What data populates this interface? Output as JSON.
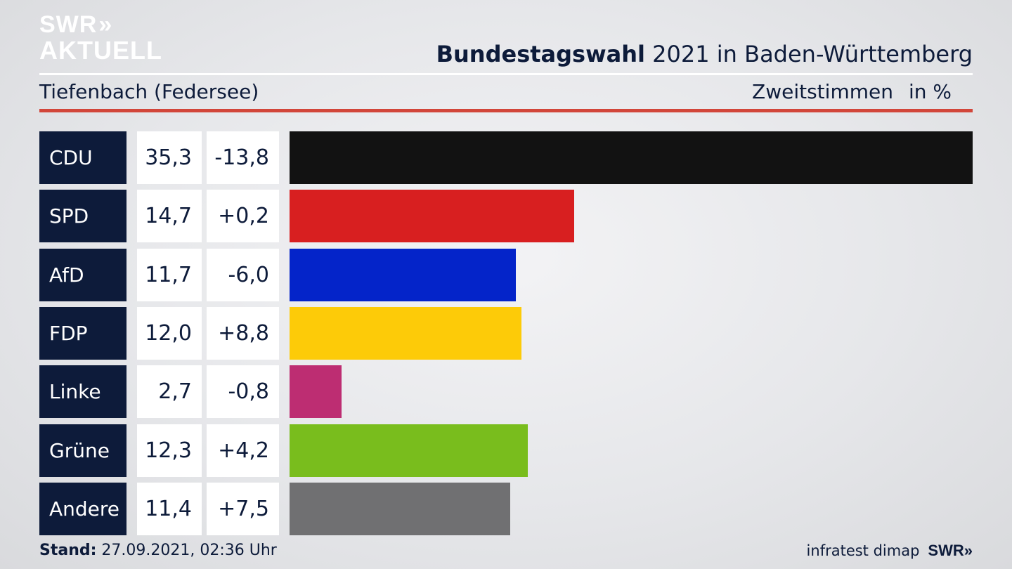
{
  "brand": {
    "logo_line1": "SWR",
    "logo_chevrons": "»",
    "logo_line2": "AKTUELL"
  },
  "header": {
    "title_bold": "Bundestagswahl",
    "title_rest": " 2021 in Baden-Württemberg",
    "location": "Tiefenbach (Federsee)",
    "measure": "Zweitstimmen",
    "unit": "in %"
  },
  "chart_data": {
    "type": "bar",
    "orientation": "horizontal",
    "categories": [
      "CDU",
      "SPD",
      "AfD",
      "FDP",
      "Linke",
      "Grüne",
      "Andere"
    ],
    "values": [
      35.3,
      14.7,
      11.7,
      12.0,
      2.7,
      12.3,
      11.4
    ],
    "value_labels": [
      "35,3",
      "14,7",
      "11,7",
      "12,0",
      "2,7",
      "12,3",
      "11,4"
    ],
    "changes": [
      -13.8,
      0.2,
      -6.0,
      8.8,
      -0.8,
      4.2,
      7.5
    ],
    "change_labels": [
      "-13,8",
      "+0,2",
      "-6,0",
      "+8,8",
      "-0,8",
      "+4,2",
      "+7,5"
    ],
    "colors": [
      "#121212",
      "#d81f20",
      "#0424c9",
      "#fdcb08",
      "#bd2d72",
      "#79bd1d",
      "#707072"
    ],
    "xlim": [
      0,
      35.3
    ]
  },
  "footer": {
    "stand_label": "Stand:",
    "stand_value": " 27.09.2021, 02:36 Uhr",
    "source": "infratest dimap",
    "brand": "SWR",
    "brand_chevrons": "»"
  }
}
